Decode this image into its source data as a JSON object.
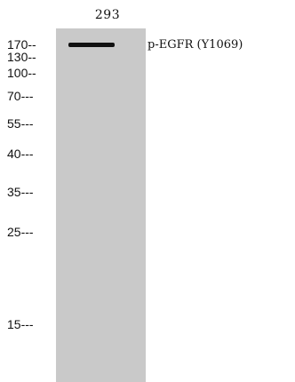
{
  "lane": {
    "label": "293"
  },
  "markers": [
    {
      "label": "170",
      "suffix": "--"
    },
    {
      "label": "130",
      "suffix": "--"
    },
    {
      "label": "100",
      "suffix": "--"
    },
    {
      "label": "70",
      "suffix": "---"
    },
    {
      "label": "55",
      "suffix": "---"
    },
    {
      "label": "40",
      "suffix": "---"
    },
    {
      "label": "35",
      "suffix": "---"
    },
    {
      "label": "25",
      "suffix": "---"
    },
    {
      "label": "15",
      "suffix": "---"
    }
  ],
  "band": {
    "label": "p-EGFR (Y1069)"
  },
  "colors": {
    "lane_background": "#c9c9c9",
    "band": "#111111",
    "text": "#111111"
  }
}
